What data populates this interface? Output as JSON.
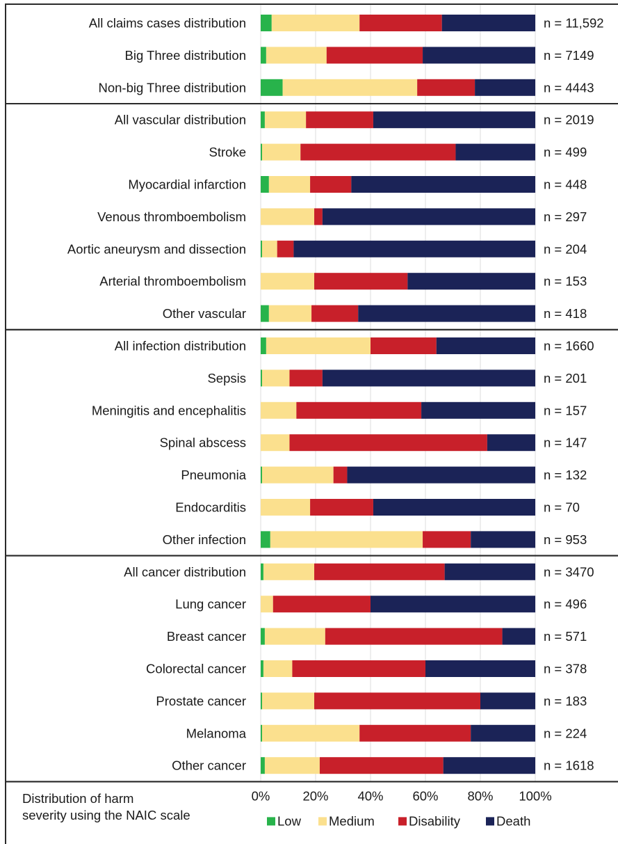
{
  "chart_data": {
    "type": "bar",
    "stacked": true,
    "orientation": "horizontal",
    "legend_title": "Distribution of harm severity using the NAIC scale",
    "legend_title_lines": [
      "Distribution of harm",
      "severity using the NAIC scale"
    ],
    "legend_position": "bottom",
    "xlim": [
      0,
      100
    ],
    "x_ticks": [
      "0%",
      "20%",
      "40%",
      "60%",
      "80%",
      "100%"
    ],
    "grid": true,
    "series": [
      {
        "name": "Low",
        "color": "#28b34b"
      },
      {
        "name": "Medium",
        "color": "#fbe08e"
      },
      {
        "name": "Disability",
        "color": "#c8202a"
      },
      {
        "name": "Death",
        "color": "#1b2357"
      }
    ],
    "groups": [
      {
        "rows": [
          {
            "label": "All claims cases distribution",
            "n": "n = 11,592",
            "values": [
              4,
              32,
              30,
              34
            ]
          },
          {
            "label": "Big Three distribution",
            "n": "n = 7149",
            "values": [
              2,
              22,
              35,
              41
            ]
          },
          {
            "label": "Non-big Three distribution",
            "n": "n = 4443",
            "values": [
              8,
              49,
              21,
              22
            ]
          }
        ]
      },
      {
        "rows": [
          {
            "label": "All vascular distribution",
            "n": "n = 2019",
            "values": [
              1.5,
              15,
              24.5,
              59
            ]
          },
          {
            "label": "Stroke",
            "n": "n = 499",
            "values": [
              0.5,
              14,
              56.5,
              29
            ]
          },
          {
            "label": "Myocardial infarction",
            "n": "n = 448",
            "values": [
              3,
              15,
              15,
              67
            ]
          },
          {
            "label": "Venous thromboembolism",
            "n": "n = 297",
            "values": [
              0,
              19.5,
              3,
              77.5
            ]
          },
          {
            "label": "Aortic aneurysm and dissection",
            "n": "n = 204",
            "values": [
              0.5,
              5.5,
              6,
              88
            ]
          },
          {
            "label": "Arterial thromboembolism",
            "n": "n = 153",
            "values": [
              0,
              19.5,
              34,
              46.5
            ]
          },
          {
            "label": "Other vascular",
            "n": "n = 418",
            "values": [
              3,
              15.5,
              17,
              64.5
            ]
          }
        ]
      },
      {
        "rows": [
          {
            "label": "All infection distribution",
            "n": "n = 1660",
            "values": [
              2,
              38,
              24,
              36
            ]
          },
          {
            "label": "Sepsis",
            "n": "n = 201",
            "values": [
              0.5,
              10,
              12,
              77.5
            ]
          },
          {
            "label": "Meningitis and encephalitis",
            "n": "n = 157",
            "values": [
              0,
              13,
              45.5,
              41.5
            ]
          },
          {
            "label": "Spinal abscess",
            "n": "n = 147",
            "values": [
              0,
              10.5,
              72,
              17.5
            ]
          },
          {
            "label": "Pneumonia",
            "n": "n = 132",
            "values": [
              0.5,
              26,
              5,
              68.5
            ]
          },
          {
            "label": "Endocarditis",
            "n": "n = 70",
            "values": [
              0,
              18,
              23,
              59
            ]
          },
          {
            "label": "Other infection",
            "n": "n = 953",
            "values": [
              3.5,
              55.5,
              17.5,
              23.5
            ]
          }
        ]
      },
      {
        "rows": [
          {
            "label": "All cancer distribution",
            "n": "n = 3470",
            "values": [
              1,
              18.5,
              47.5,
              33
            ]
          },
          {
            "label": "Lung cancer",
            "n": "n = 496",
            "values": [
              0,
              4.5,
              35.5,
              60
            ]
          },
          {
            "label": "Breast cancer",
            "n": "n = 571",
            "values": [
              1.5,
              22,
              64.5,
              12
            ]
          },
          {
            "label": "Colorectal cancer",
            "n": "n = 378",
            "values": [
              1,
              10.5,
              48.5,
              40
            ]
          },
          {
            "label": "Prostate cancer",
            "n": "n = 183",
            "values": [
              0.5,
              19,
              60.5,
              20
            ]
          },
          {
            "label": "Melanoma",
            "n": "n = 224",
            "values": [
              0.5,
              35.5,
              40.5,
              23.5
            ]
          },
          {
            "label": "Other cancer",
            "n": "n = 1618",
            "values": [
              1.5,
              20,
              45,
              33.5
            ]
          }
        ]
      }
    ]
  }
}
